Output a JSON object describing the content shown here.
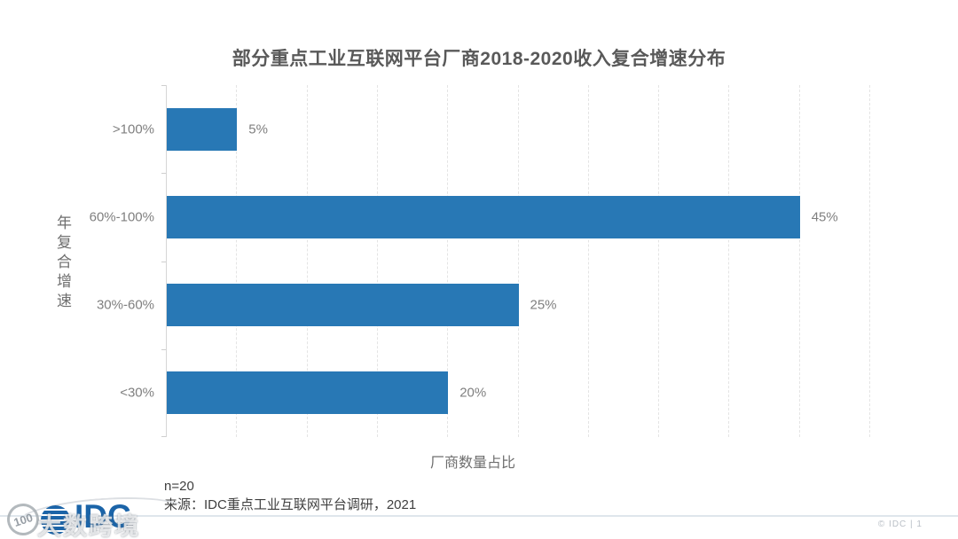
{
  "title": "部分重点工业互联网平台厂商2018-2020收入复合增速分布",
  "chart_data": {
    "type": "bar",
    "orientation": "horizontal",
    "title": "部分重点工业互联网平台厂商2018-2020收入复合增速分布",
    "categories": [
      ">100%",
      "60%-100%",
      "30%-60%",
      "<30%"
    ],
    "values": [
      5,
      45,
      25,
      20
    ],
    "value_labels": [
      "5%",
      "45%",
      "25%",
      "20%"
    ],
    "xlabel": "厂商数量占比",
    "ylabel": "年复合增速",
    "xlim": [
      0,
      50
    ],
    "gridline_step": 5,
    "grid": true,
    "legend": "none",
    "bar_color": "#2878B5"
  },
  "footer": {
    "sample_note": "n=20",
    "source": "来源：IDC重点工业互联网平台调研，2021",
    "copyright": "© IDC |  1"
  },
  "logo": {
    "badge_text": "100",
    "idc_text": "IDC",
    "watermark_text": "大数跨境"
  },
  "colors": {
    "bar": "#2878B5",
    "title_text": "#595959",
    "axis_label_text": "#7f7f7f",
    "gridline": "#e4e4e4",
    "footer_divider": "#dfe6ec",
    "logo_blue": "#1b64a8"
  }
}
